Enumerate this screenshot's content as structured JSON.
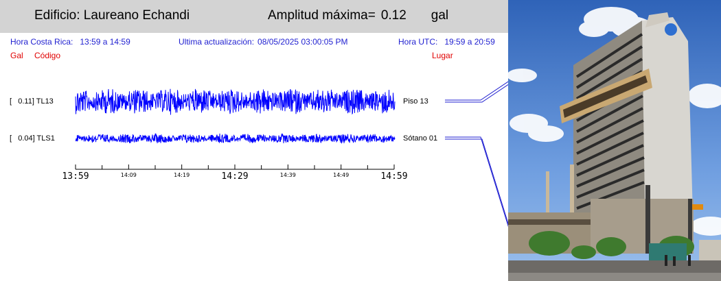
{
  "header": {
    "building_label": "Edificio: Laureano Echandi",
    "amplitude_label": "Amplitud máxima=",
    "amplitude_value": "0.12",
    "amplitude_unit": "gal"
  },
  "info": {
    "local_time_label": "Hora Costa Rica:",
    "local_time_value": "13:59 a 14:59",
    "update_label": "Ultima actualización:",
    "update_value": "08/05/2025 03:00:05 PM",
    "utc_label": "Hora UTC:",
    "utc_value": "19:59 a 20:59"
  },
  "columns": {
    "gal": "Gal",
    "code": "Código",
    "place": "Lugar"
  },
  "channels": [
    {
      "label": "[   0.11] TL13",
      "place": "Piso 13",
      "peak_gal": 0.11
    },
    {
      "label": "[   0.04] TLS1",
      "place": "Sótano 01",
      "peak_gal": 0.04
    }
  ],
  "time_axis": {
    "ticks": [
      "13:59",
      "14:09",
      "14:19",
      "14:29",
      "14:39",
      "14:49",
      "14:59"
    ]
  },
  "colors": {
    "trace": "#0000ff",
    "info_text": "#1f1fd0",
    "column_headers": "#e00000",
    "header_bar": "#d3d3d3"
  }
}
